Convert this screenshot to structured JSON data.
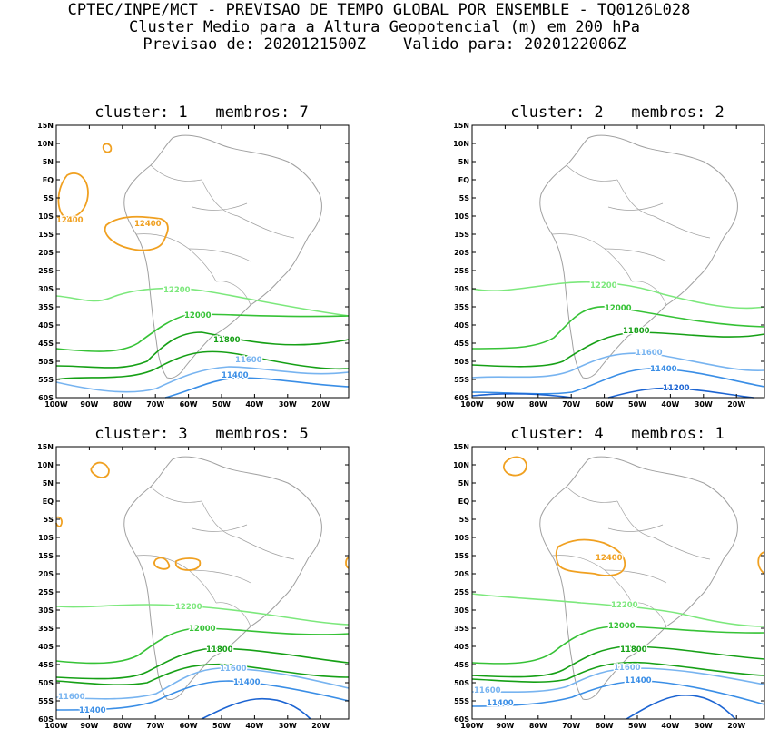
{
  "header": {
    "line1": "CPTEC/INPE/MCT - PREVISAO DE TEMPO GLOBAL POR ENSEMBLE - TQ0126L028",
    "line2": "Cluster Medio para a Altura Geopotencial (m) em 200 hPa",
    "line3": "Previsao de: 2020121500Z    Valido para: 2020122006Z"
  },
  "lat_labels": [
    "15N",
    "10N",
    "5N",
    "EQ",
    "5S",
    "10S",
    "15S",
    "20S",
    "25S",
    "30S",
    "35S",
    "40S",
    "45S",
    "50S",
    "55S",
    "60S"
  ],
  "lon_labels": [
    "100W",
    "90W",
    "80W",
    "70W",
    "60W",
    "50W",
    "40W",
    "30W",
    "20W"
  ],
  "colors": {
    "c12400": "#f0a020",
    "c12200": "#7ce87c",
    "c12000": "#36c236",
    "c11800": "#16a016",
    "c11600": "#78b4f0",
    "c11400": "#3a8ee6",
    "c11200": "#1c64d2",
    "coast": "#a0a0a0"
  },
  "panels": [
    {
      "title": "cluster: 1   membros: 7",
      "contours": [
        {
          "level": "12200",
          "label": "12200"
        },
        {
          "level": "12000",
          "label": "12000"
        },
        {
          "level": "11800",
          "label": "11800"
        },
        {
          "level": "11600",
          "label": "11600"
        },
        {
          "level": "11400",
          "label": "11400"
        }
      ],
      "highs": [
        {
          "label": "12400"
        },
        {
          "label": "12400"
        }
      ]
    },
    {
      "title": "cluster: 2   membros: 2",
      "contours": [
        {
          "level": "12200",
          "label": "12200"
        },
        {
          "level": "12000",
          "label": "12000"
        },
        {
          "level": "11800",
          "label": "11800"
        },
        {
          "level": "11600",
          "label": "11600"
        },
        {
          "level": "11400",
          "label": "11400"
        },
        {
          "level": "11200",
          "label": "11200"
        }
      ],
      "highs": []
    },
    {
      "title": "cluster: 3   membros: 5",
      "contours": [
        {
          "level": "12200",
          "label": "12200"
        },
        {
          "level": "12000",
          "label": "12000"
        },
        {
          "level": "11800",
          "label": "11800"
        },
        {
          "level": "11600",
          "label": "11600"
        },
        {
          "level": "11400",
          "label": "11400"
        }
      ],
      "extra_labels": [
        "11600",
        "11400"
      ],
      "highs": []
    },
    {
      "title": "cluster: 4   membros: 1",
      "contours": [
        {
          "level": "12200",
          "label": "12200"
        },
        {
          "level": "12000",
          "label": "12000"
        },
        {
          "level": "11800",
          "label": "11800"
        },
        {
          "level": "11600",
          "label": "11600"
        },
        {
          "level": "11400",
          "label": "11400"
        }
      ],
      "extra_labels": [
        "11600",
        "11400"
      ],
      "highs": [
        {
          "label": "12400"
        }
      ]
    }
  ]
}
